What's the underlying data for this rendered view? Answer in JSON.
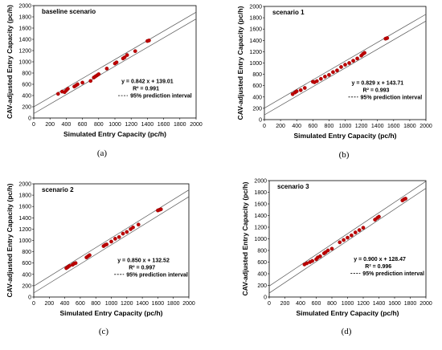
{
  "chart_data": [
    {
      "type": "scatter",
      "panel_label": "(a)",
      "title": "baseline scenario",
      "xlabel": "Simulated Entry Capacity (pc/h)",
      "ylabel": "CAV-adjusted Entry Capacity (pc/h)",
      "xlim": [
        0,
        2000
      ],
      "ylim": [
        0,
        2000
      ],
      "xticks": [
        "0",
        "200",
        "400",
        "600",
        "800",
        "1000",
        "1200",
        "1400",
        "1600",
        "1800",
        "2000"
      ],
      "yticks": [
        "0",
        "200",
        "400",
        "600",
        "800",
        "1000",
        "1200",
        "1400",
        "1600",
        "1800",
        "2000"
      ],
      "equation": "y = 0.842 x + 139.01",
      "r2": "R² = 0.991",
      "legend_label": "95% prediction interval",
      "fit": {
        "slope": 0.842,
        "intercept": 139.01
      },
      "interval_halfwidth": 60,
      "marker_color": "#c00000",
      "points": [
        [
          300,
          430
        ],
        [
          350,
          470
        ],
        [
          380,
          460
        ],
        [
          400,
          490
        ],
        [
          420,
          520
        ],
        [
          500,
          560
        ],
        [
          520,
          580
        ],
        [
          540,
          600
        ],
        [
          600,
          630
        ],
        [
          700,
          660
        ],
        [
          740,
          720
        ],
        [
          760,
          740
        ],
        [
          780,
          760
        ],
        [
          800,
          780
        ],
        [
          900,
          880
        ],
        [
          1000,
          970
        ],
        [
          1020,
          990
        ],
        [
          1100,
          1060
        ],
        [
          1120,
          1080
        ],
        [
          1150,
          1120
        ],
        [
          1250,
          1190
        ],
        [
          1400,
          1370
        ],
        [
          1420,
          1380
        ]
      ]
    },
    {
      "type": "scatter",
      "panel_label": "(b)",
      "title": "scenario 1",
      "xlabel": "Simulated Entry Capacity (pc/h)",
      "ylabel": "CAV-adjusted Entry Capacity (pc/h)",
      "xlim": [
        0,
        2000
      ],
      "ylim": [
        0,
        2000
      ],
      "xticks": [
        "0",
        "200",
        "400",
        "600",
        "800",
        "1000",
        "1200",
        "1400",
        "1600",
        "1800",
        "2000"
      ],
      "yticks": [
        "0",
        "200",
        "400",
        "600",
        "800",
        "1000",
        "1200",
        "1400",
        "1600",
        "1800",
        "2000"
      ],
      "equation": "y = 0.829 x + 143.71",
      "r2": "R² = 0.993",
      "legend_label": "95% prediction interval",
      "fit": {
        "slope": 0.829,
        "intercept": 143.71
      },
      "interval_halfwidth": 60,
      "marker_color": "#c00000",
      "points": [
        [
          350,
          450
        ],
        [
          380,
          480
        ],
        [
          400,
          500
        ],
        [
          450,
          520
        ],
        [
          500,
          560
        ],
        [
          600,
          670
        ],
        [
          620,
          660
        ],
        [
          650,
          680
        ],
        [
          700,
          720
        ],
        [
          750,
          760
        ],
        [
          800,
          790
        ],
        [
          850,
          840
        ],
        [
          900,
          870
        ],
        [
          950,
          930
        ],
        [
          1000,
          970
        ],
        [
          1050,
          1000
        ],
        [
          1100,
          1040
        ],
        [
          1150,
          1080
        ],
        [
          1200,
          1130
        ],
        [
          1220,
          1160
        ],
        [
          1240,
          1180
        ],
        [
          1500,
          1430
        ],
        [
          1520,
          1440
        ]
      ]
    },
    {
      "type": "scatter",
      "panel_label": "(c)",
      "title": "scenario 2",
      "xlabel": "Simulated Entry Capacity (pc/h)",
      "ylabel": "CAV-adjusted Entry Capacity (pc/h)",
      "xlim": [
        0,
        2000
      ],
      "ylim": [
        0,
        2000
      ],
      "xticks": [
        "0",
        "200",
        "400",
        "600",
        "800",
        "1000",
        "1200",
        "1400",
        "1600",
        "1800",
        "2000"
      ],
      "yticks": [
        "0",
        "200",
        "400",
        "600",
        "800",
        "1000",
        "1200",
        "1400",
        "1600",
        "1800",
        "2000"
      ],
      "equation": "y = 0.850 x + 132.52",
      "r2": "R² = 0.997",
      "legend_label": "95% prediction interval",
      "fit": {
        "slope": 0.85,
        "intercept": 132.52
      },
      "interval_halfwidth": 60,
      "marker_color": "#c00000",
      "points": [
        [
          420,
          510
        ],
        [
          440,
          530
        ],
        [
          460,
          550
        ],
        [
          500,
          570
        ],
        [
          520,
          590
        ],
        [
          540,
          600
        ],
        [
          680,
          700
        ],
        [
          700,
          720
        ],
        [
          720,
          740
        ],
        [
          900,
          900
        ],
        [
          920,
          920
        ],
        [
          940,
          930
        ],
        [
          1000,
          980
        ],
        [
          1050,
          1030
        ],
        [
          1100,
          1060
        ],
        [
          1150,
          1120
        ],
        [
          1200,
          1150
        ],
        [
          1250,
          1200
        ],
        [
          1280,
          1230
        ],
        [
          1350,
          1280
        ],
        [
          1600,
          1530
        ],
        [
          1620,
          1540
        ],
        [
          1640,
          1550
        ]
      ]
    },
    {
      "type": "scatter",
      "panel_label": "(d)",
      "title": "scenario 3",
      "xlabel": "Simulated Entry Capacity (pc/h)",
      "ylabel": "CAV-adjusted Entry Capacity (pc/h)",
      "xlim": [
        0,
        2000
      ],
      "ylim": [
        0,
        2000
      ],
      "xticks": [
        "0",
        "200",
        "400",
        "600",
        "800",
        "1000",
        "1200",
        "1400",
        "1600",
        "1800",
        "2000"
      ],
      "yticks": [
        "0",
        "200",
        "400",
        "600",
        "800",
        "1000",
        "1200",
        "1400",
        "1600",
        "1800",
        "2000"
      ],
      "equation": "y = 0.900 x + 128.47",
      "r2": "R² = 0.996",
      "legend_label": "95% prediction interval",
      "fit": {
        "slope": 0.9,
        "intercept": 128.47
      },
      "interval_halfwidth": 60,
      "marker_color": "#c00000",
      "points": [
        [
          450,
          560
        ],
        [
          480,
          580
        ],
        [
          520,
          600
        ],
        [
          550,
          620
        ],
        [
          600,
          650
        ],
        [
          620,
          680
        ],
        [
          650,
          700
        ],
        [
          700,
          750
        ],
        [
          720,
          770
        ],
        [
          750,
          800
        ],
        [
          800,
          830
        ],
        [
          900,
          940
        ],
        [
          950,
          980
        ],
        [
          1000,
          1020
        ],
        [
          1050,
          1060
        ],
        [
          1100,
          1110
        ],
        [
          1150,
          1150
        ],
        [
          1200,
          1190
        ],
        [
          1350,
          1330
        ],
        [
          1380,
          1360
        ],
        [
          1400,
          1380
        ],
        [
          1700,
          1660
        ],
        [
          1720,
          1680
        ],
        [
          1740,
          1690
        ]
      ]
    }
  ]
}
